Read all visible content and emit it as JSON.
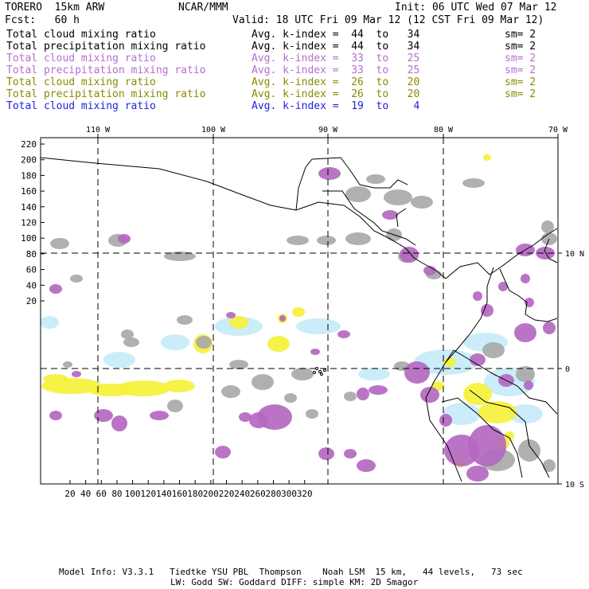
{
  "header": {
    "model": "TORERO  15km ARW",
    "org": "NCAR/MMM",
    "init": "Init: 06 UTC Wed 07 Mar 12",
    "fcst": "Fcst:   60 h",
    "valid": "Valid: 18 UTC Fri 09 Mar 12 (12 CST Fri 09 Mar 12)"
  },
  "legend": [
    {
      "field": "Total cloud mixing ratio",
      "kidx": "Avg. k-index =  44  to   34",
      "sm": "sm= 2",
      "color": "#000000"
    },
    {
      "field": "Total precipitation mixing ratio",
      "kidx": "Avg. k-index =  44  to   34",
      "sm": "sm= 2",
      "color": "#000000"
    },
    {
      "field": "Total cloud mixing ratio",
      "kidx": "Avg. k-index =  33  to   25",
      "sm": "sm= 2",
      "color": "#b56fcf"
    },
    {
      "field": "Total precipitation mixing ratio",
      "kidx": "Avg. k-index =  33  to   25",
      "sm": "sm= 2",
      "color": "#b56fcf"
    },
    {
      "field": "Total cloud mixing ratio",
      "kidx": "Avg. k-index =  26  to   20",
      "sm": "sm= 2",
      "color": "#8a8a00"
    },
    {
      "field": "Total precipitation mixing ratio",
      "kidx": "Avg. k-index =  26  to   20",
      "sm": "sm= 2",
      "color": "#8a8a00"
    },
    {
      "field": "Total cloud mixing ratio",
      "kidx": "Avg. k-index =  19  to    4",
      "sm": "",
      "color": "#1f1fe0"
    }
  ],
  "map": {
    "lon_labels": [
      "110 W",
      "100 W",
      "90 W",
      "80 W",
      "70 W"
    ],
    "lat_labels": [
      "10 N",
      "0",
      "10 S"
    ],
    "y_ticks": [
      "220",
      "200",
      "180",
      "160",
      "140",
      "120",
      "100",
      "80",
      "60",
      "40",
      "20"
    ],
    "x_ticks": [
      "20",
      "40",
      "60",
      "80",
      "100",
      "120",
      "140",
      "160",
      "180",
      "200",
      "220",
      "240",
      "260",
      "280",
      "300",
      "320"
    ],
    "colors": {
      "gray": "#a9a9a9",
      "purple": "#b468c0",
      "yellow": "#f6f13b",
      "cyan": "#c6ecf8",
      "coast": "#000000"
    }
  },
  "footer": {
    "line1": "Model Info: V3.3.1   Tiedtke YSU PBL  Thompson    Noah LSM  15 km,   44 levels,   73 sec",
    "line2": "LW: Godd SW: Goddard DIFF: simple KM: 2D Smagor"
  }
}
